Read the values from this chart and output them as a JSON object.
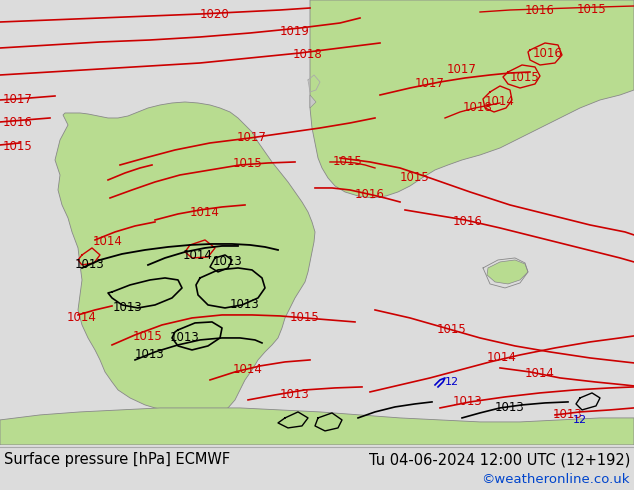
{
  "title_left": "Surface pressure [hPa] ECMWF",
  "title_right": "Tu 04-06-2024 12:00 UTC (12+192)",
  "credit": "©weatheronline.co.uk",
  "bg_ocean": "#dcdcdc",
  "bg_green": "#b8dc90",
  "bg_footer": "#e8e8e8",
  "red": "#cc0000",
  "black": "#000000",
  "blue": "#0000cc",
  "credit_color": "#0044cc",
  "fig_width": 6.34,
  "fig_height": 4.9,
  "dpi": 100
}
